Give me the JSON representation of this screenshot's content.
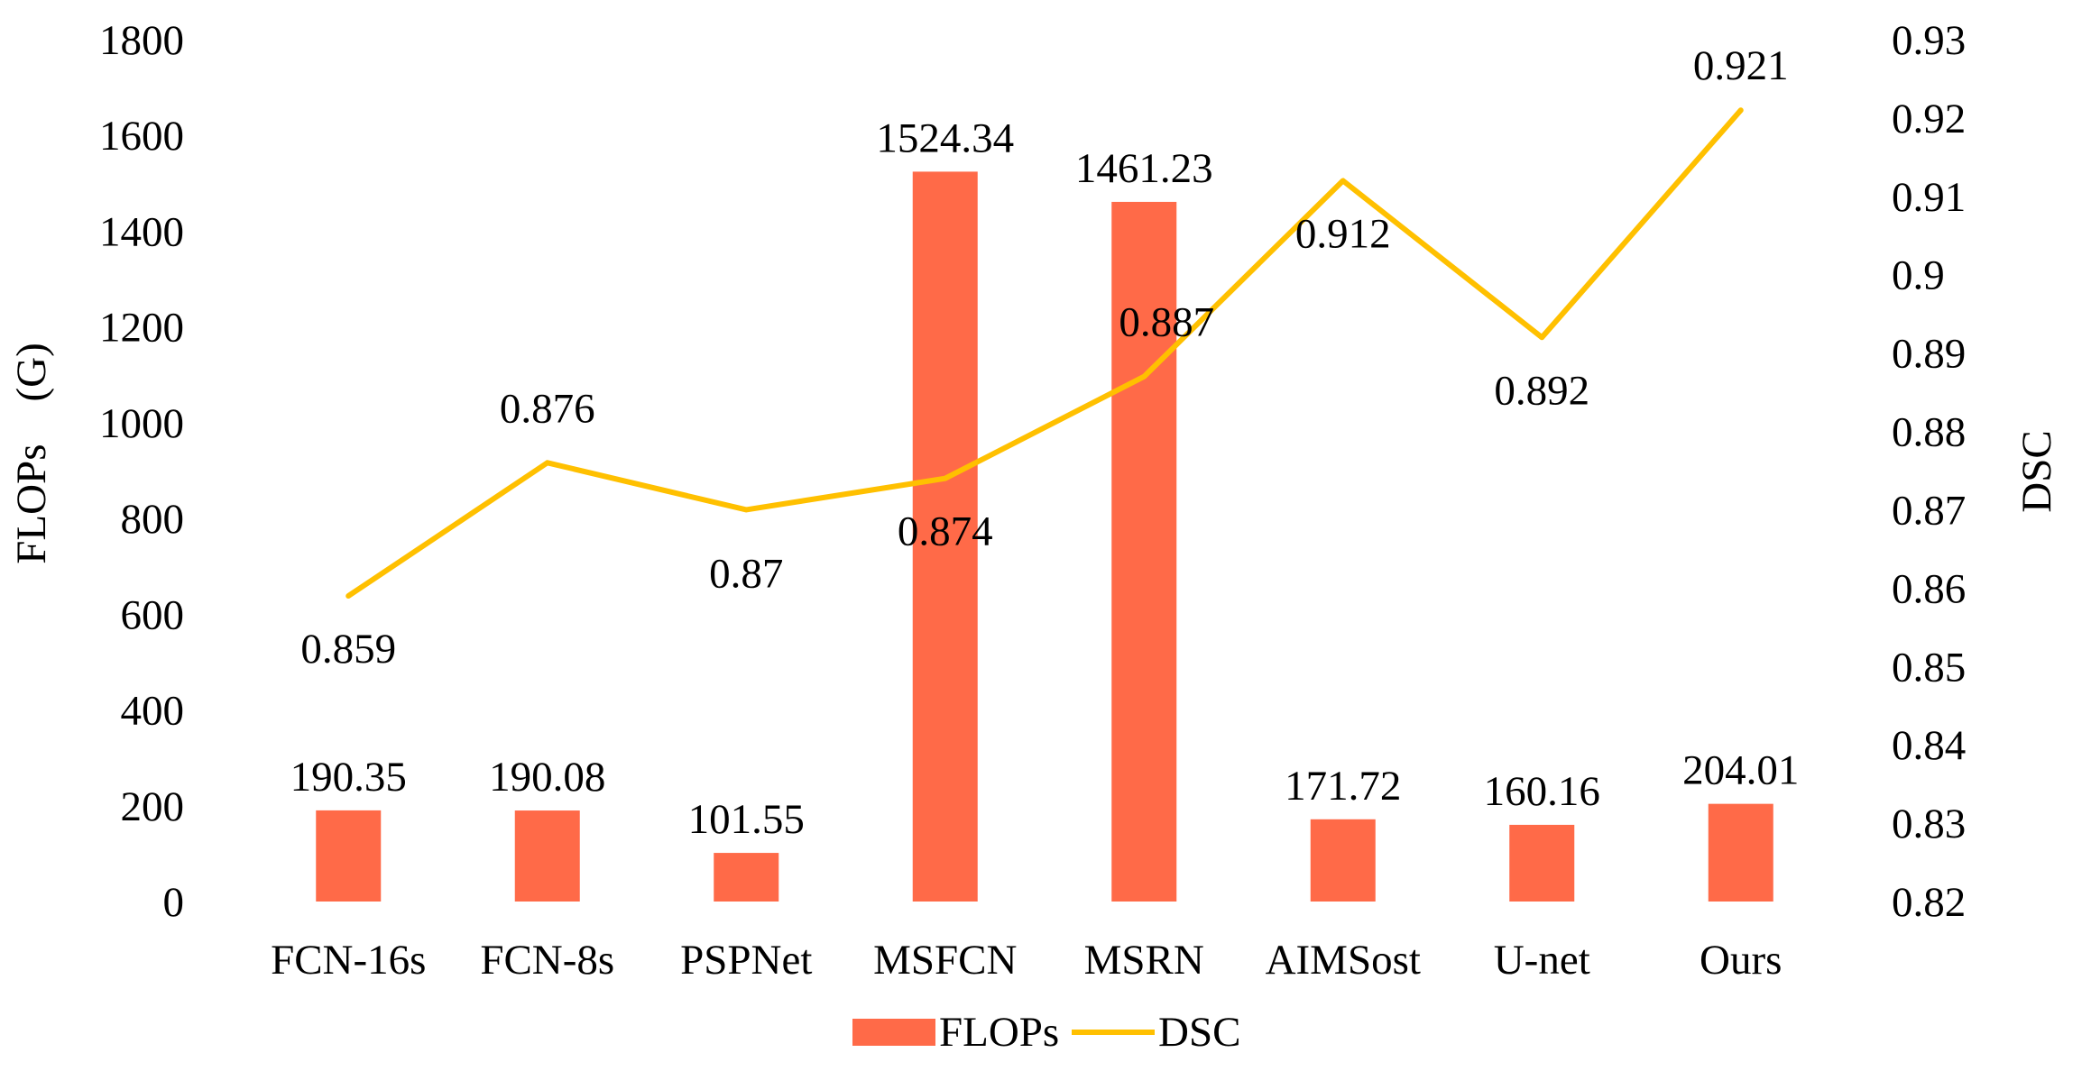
{
  "chart_data": {
    "type": "bar",
    "categories": [
      "FCN-16s",
      "FCN-8s",
      "PSPNet",
      "MSFCN",
      "MSRN",
      "AIMSost",
      "U-net",
      "Ours"
    ],
    "series": [
      {
        "name": "FLOPs",
        "chart_type": "bar",
        "axis": "left",
        "values": [
          190.35,
          190.08,
          101.55,
          1524.34,
          1461.23,
          171.72,
          160.16,
          204.01
        ],
        "labels": [
          "190.35",
          "190.08",
          "101.55",
          "1524.34",
          "1461.23",
          "171.72",
          "160.16",
          "204.01"
        ],
        "color": "#FF6A48"
      },
      {
        "name": "DSC",
        "chart_type": "line",
        "axis": "right",
        "values": [
          0.859,
          0.876,
          0.87,
          0.874,
          0.887,
          0.912,
          0.892,
          0.921
        ],
        "labels": [
          "0.859",
          "0.876",
          "0.87",
          "0.874",
          "0.887",
          "0.912",
          "0.892",
          "0.921"
        ],
        "color": "#FFC000"
      }
    ],
    "y_left": {
      "label": "FLOPs　(G)",
      "ylim": [
        0,
        1800
      ],
      "ticks": [
        "0",
        "200",
        "400",
        "600",
        "800",
        "1000",
        "1200",
        "1400",
        "1600",
        "1800"
      ]
    },
    "y_right": {
      "label": "DSC",
      "ylim": [
        0.82,
        0.93
      ],
      "ticks": [
        "0.82",
        "0.83",
        "0.84",
        "0.85",
        "0.86",
        "0.87",
        "0.88",
        "0.89",
        "0.9",
        "0.91",
        "0.92",
        "0.93"
      ]
    },
    "grid": false,
    "legend": {
      "position": "bottom",
      "entries": [
        "FLOPs",
        "DSC"
      ]
    },
    "title": "",
    "xlabel": ""
  }
}
